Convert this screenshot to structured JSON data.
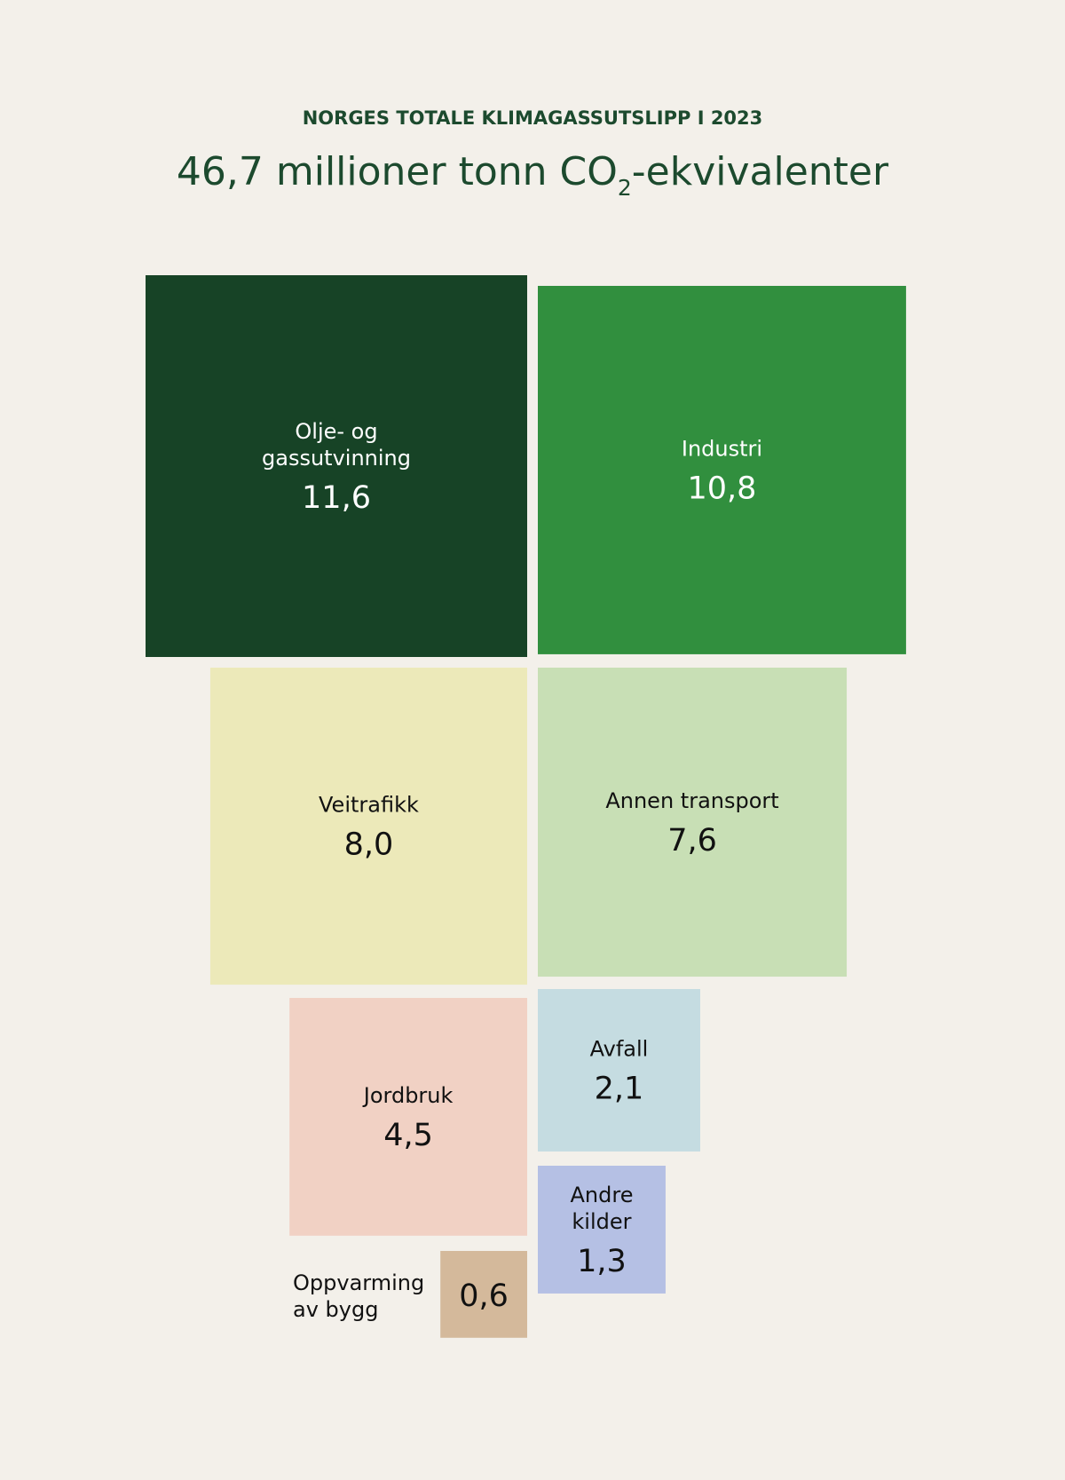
{
  "header": {
    "kicker": "NORGES TOTALE KLIMAGASSUTSLIPP I 2023",
    "title_prefix": "46,7 millioner tonn CO",
    "title_sub": "2",
    "title_suffix": "-ekvivalenter"
  },
  "chart_data": {
    "type": "proportional-squares",
    "title": "NORGES TOTALE KLIMAGASSUTSLIPP I 2023",
    "subtitle": "46,7 millioner tonn CO2-ekvivalenter",
    "total": 46.7,
    "categories": [
      "Olje- og gassutvinning",
      "Industri",
      "Veitrafikk",
      "Annen transport",
      "Jordbruk",
      "Avfall",
      "Andre kilder",
      "Oppvarming av bygg"
    ],
    "values": [
      11.6,
      10.8,
      8.0,
      7.6,
      4.5,
      2.1,
      1.3,
      0.6
    ],
    "series": [
      {
        "name": "Olje- og gassutvinning",
        "name_lines": [
          "Olje- og",
          "gassutvinning"
        ],
        "value": 11.6,
        "value_label": "11,6",
        "color": "#174326",
        "text_color": "#ffffff"
      },
      {
        "name": "Industri",
        "name_lines": [
          "Industri"
        ],
        "value": 10.8,
        "value_label": "10,8",
        "color": "#318f3e",
        "text_color": "#ffffff"
      },
      {
        "name": "Veitrafikk",
        "name_lines": [
          "Veitrafikk"
        ],
        "value": 8.0,
        "value_label": "8,0",
        "color": "#ece9b9",
        "text_color": "#111111"
      },
      {
        "name": "Annen transport",
        "name_lines": [
          "Annen transport"
        ],
        "value": 7.6,
        "value_label": "7,6",
        "color": "#c8dfb5",
        "text_color": "#111111"
      },
      {
        "name": "Jordbruk",
        "name_lines": [
          "Jordbruk"
        ],
        "value": 4.5,
        "value_label": "4,5",
        "color": "#f1d1c4",
        "text_color": "#111111"
      },
      {
        "name": "Avfall",
        "name_lines": [
          "Avfall"
        ],
        "value": 2.1,
        "value_label": "2,1",
        "color": "#c5dce1",
        "text_color": "#111111"
      },
      {
        "name": "Andre kilder",
        "name_lines": [
          "Andre",
          "kilder"
        ],
        "value": 1.3,
        "value_label": "1,3",
        "color": "#b5c0e4",
        "text_color": "#111111"
      },
      {
        "name": "Oppvarming av bygg",
        "name_lines": [
          "Oppvarming",
          "av bygg"
        ],
        "value": 0.6,
        "value_label": "0,6",
        "color": "#d4b99b",
        "text_color": "#111111"
      }
    ]
  }
}
